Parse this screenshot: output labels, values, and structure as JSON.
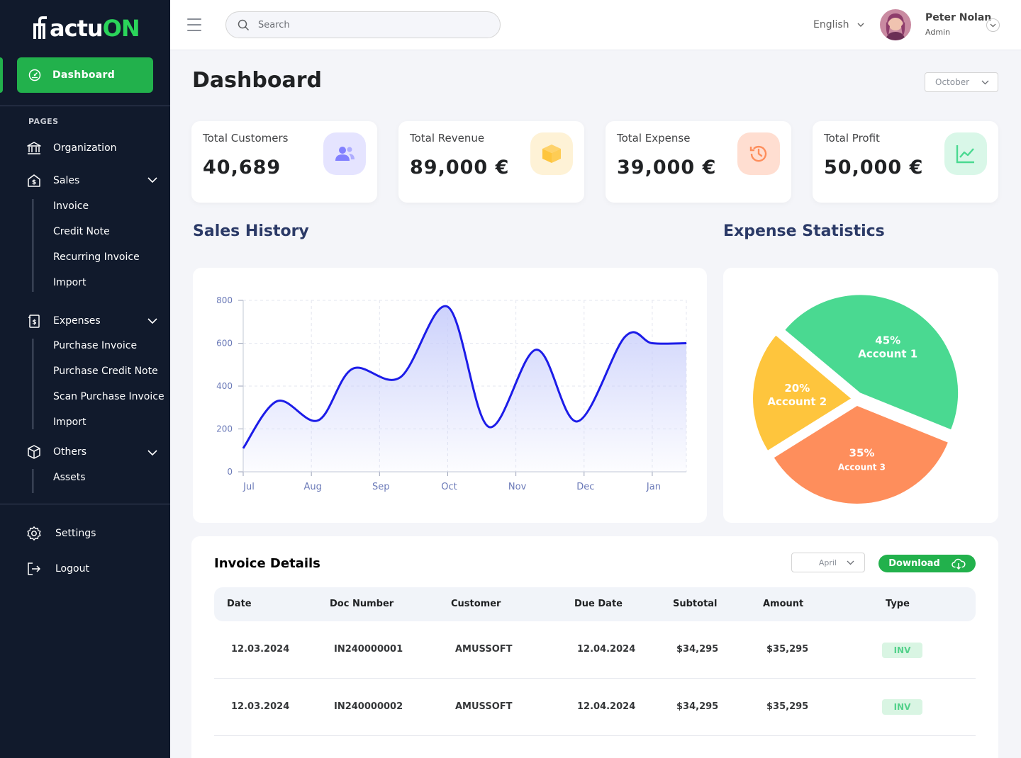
{
  "brand": {
    "name_white": "actu",
    "name_green": "ON"
  },
  "sidebar": {
    "dashboard_label": "Dashboard",
    "pages_label": "PAGES",
    "organization": "Organization",
    "sales": {
      "label": "Sales",
      "items": [
        "Invoice",
        "Credit Note",
        "Recurring Invoice",
        "Import"
      ]
    },
    "expenses": {
      "label": "Expenses",
      "items": [
        "Purchase Invoice",
        "Purchase Credit Note",
        "Scan Purchase Invoice",
        "Import"
      ]
    },
    "others": {
      "label": "Others",
      "items": [
        "Assets"
      ]
    },
    "settings": "Settings",
    "logout": "Logout"
  },
  "header": {
    "search_placeholder": "Search",
    "language": "English",
    "user_name": "Peter Nolan",
    "user_role": "Admin"
  },
  "page": {
    "title": "Dashboard",
    "month": "October"
  },
  "stats": [
    {
      "label": "Total Customers",
      "value": "40,689",
      "icon": "users-icon",
      "color": "#e5e4ff"
    },
    {
      "label": "Total Revenue",
      "value": "89,000 €",
      "icon": "box-icon",
      "color": "#fef2d6"
    },
    {
      "label": "Total Expense",
      "value": "39,000 €",
      "icon": "history-icon",
      "color": "#ffded1"
    },
    {
      "label": "Total Profit",
      "value": "50,000 €",
      "icon": "trend-icon",
      "color": "#d9f7e8"
    }
  ],
  "sections": {
    "sales_history": "Sales History",
    "expense_statistics": "Expense Statistics"
  },
  "chart_data": [
    {
      "type": "area",
      "title": "Sales History",
      "x_ticks": [
        "Jul",
        "Aug",
        "Sep",
        "Oct",
        "Nov",
        "Dec",
        "Jan"
      ],
      "y_ticks": [
        "0",
        "200",
        "400",
        "600",
        "800"
      ],
      "ylim": [
        0,
        800
      ],
      "x": [
        0,
        0.5,
        1.1,
        1.6,
        2.3,
        3.0,
        3.6,
        4.3,
        4.9,
        5.6,
        6.0,
        6.5
      ],
      "values": [
        110,
        330,
        240,
        480,
        440,
        770,
        210,
        570,
        235,
        630,
        600,
        600
      ],
      "colors": {
        "line": "#1c1ce8",
        "fill": "#c7cdfb"
      },
      "grid": true
    },
    {
      "type": "pie",
      "title": "Expense Statistics",
      "slices": [
        {
          "label": "Account 1",
          "percent": "45%",
          "value": 45,
          "color": "#4ad991"
        },
        {
          "label": "Account 3",
          "percent": "35%",
          "value": 35,
          "color": "#fe8e5c"
        },
        {
          "label": "Account 2",
          "percent": "20%",
          "value": 20,
          "color": "#fec53d"
        }
      ]
    }
  ],
  "invoice": {
    "title": "Invoice Details",
    "month": "April",
    "download": "Download",
    "columns": [
      "Date",
      "Doc Number",
      "Customer",
      "Due Date",
      "Subtotal",
      "Amount",
      "Type"
    ],
    "rows": [
      [
        "12.03.2024",
        "IN240000001",
        "AMUSSOFT",
        "12.04.2024",
        "$34,295",
        "$35,295",
        "INV"
      ],
      [
        "12.03.2024",
        "IN240000002",
        "AMUSSOFT",
        "12.04.2024",
        "$34,295",
        "$35,295",
        "INV"
      ]
    ]
  }
}
